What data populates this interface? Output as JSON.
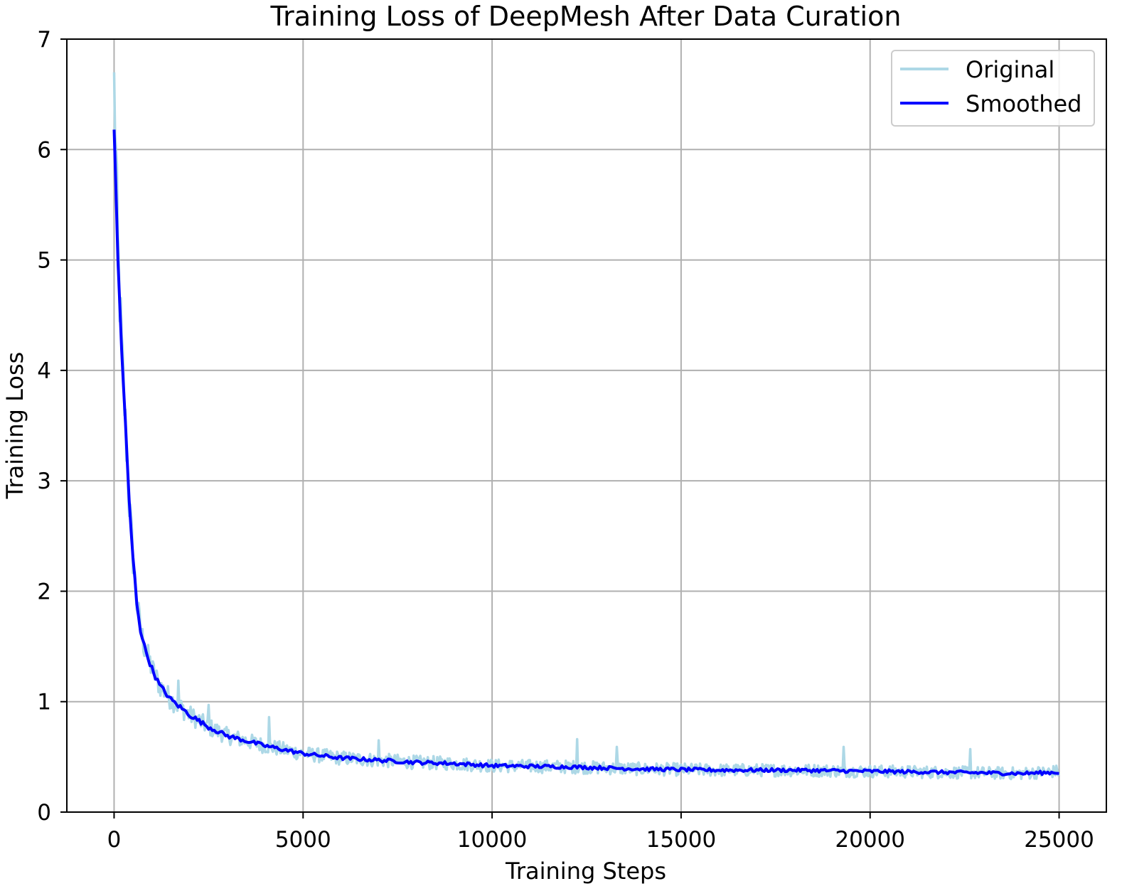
{
  "chart_data": {
    "type": "line",
    "title": "Training Loss of DeepMesh After Data Curation",
    "xlabel": "Training Steps",
    "ylabel": "Training Loss",
    "xlim": [
      -1250,
      26250
    ],
    "ylim": [
      0,
      7
    ],
    "xticks": [
      0,
      5000,
      10000,
      15000,
      20000,
      25000
    ],
    "yticks": [
      0,
      1,
      2,
      3,
      4,
      5,
      6,
      7
    ],
    "grid": true,
    "legend_position": "top-right",
    "colors": {
      "original": "#add8e6",
      "smoothed": "#0000ff",
      "grid": "#b0b0b0"
    },
    "series": [
      {
        "name": "Original",
        "noisy": true,
        "x": [
          0,
          100,
          200,
          300,
          400,
          500,
          600,
          700,
          800,
          1000,
          1200,
          1500,
          2000,
          2500,
          3000,
          4000,
          5000,
          6000,
          7000,
          8000,
          9000,
          10000,
          12000,
          14000,
          16000,
          18000,
          20000,
          22000,
          24000,
          25000
        ],
        "values": [
          6.7,
          5.1,
          4.2,
          3.5,
          2.8,
          2.3,
          1.9,
          1.65,
          1.5,
          1.3,
          1.15,
          1.02,
          0.88,
          0.77,
          0.69,
          0.6,
          0.53,
          0.49,
          0.47,
          0.45,
          0.44,
          0.42,
          0.41,
          0.39,
          0.38,
          0.38,
          0.37,
          0.36,
          0.35,
          0.37
        ]
      },
      {
        "name": "Smoothed",
        "x": [
          0,
          100,
          200,
          300,
          400,
          500,
          600,
          700,
          800,
          1000,
          1200,
          1500,
          2000,
          2500,
          3000,
          4000,
          5000,
          6000,
          7000,
          8000,
          9000,
          10000,
          12000,
          14000,
          16000,
          18000,
          20000,
          22000,
          24000,
          25000
        ],
        "values": [
          6.18,
          5.0,
          4.2,
          3.5,
          2.8,
          2.3,
          1.9,
          1.65,
          1.5,
          1.3,
          1.15,
          1.02,
          0.88,
          0.77,
          0.69,
          0.6,
          0.53,
          0.49,
          0.47,
          0.45,
          0.44,
          0.42,
          0.41,
          0.39,
          0.38,
          0.38,
          0.37,
          0.36,
          0.35,
          0.36
        ]
      }
    ],
    "spikes": [
      {
        "x": 1700,
        "y": 1.19
      },
      {
        "x": 2500,
        "y": 0.97
      },
      {
        "x": 4100,
        "y": 0.86
      },
      {
        "x": 7000,
        "y": 0.65
      },
      {
        "x": 12250,
        "y": 0.66
      },
      {
        "x": 13300,
        "y": 0.59
      },
      {
        "x": 19300,
        "y": 0.59
      },
      {
        "x": 22650,
        "y": 0.57
      }
    ]
  }
}
